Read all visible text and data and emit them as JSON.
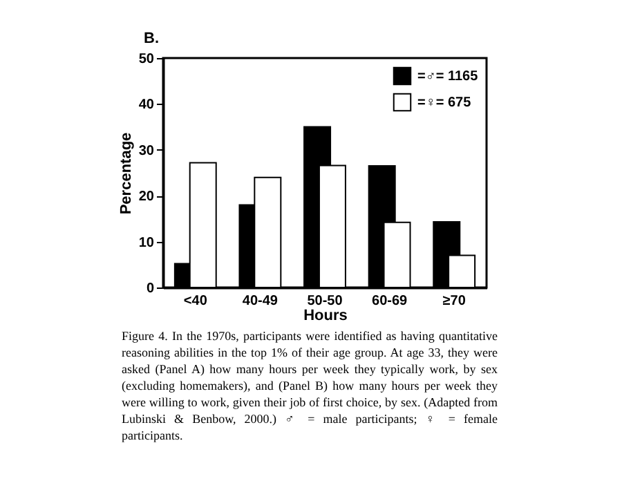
{
  "chart_data": {
    "type": "bar",
    "xlabel": "Hours",
    "ylabel": "Percentage",
    "categories": [
      "<40",
      "40-49",
      "50-50",
      "60-69",
      "≥70"
    ],
    "series": [
      {
        "name": "=♂= 1165",
        "color": "#000000",
        "values": [
          5.2,
          18,
          35,
          26.5,
          14.3
        ]
      },
      {
        "name": "=♀= 675",
        "color": "#ffffff",
        "values": [
          27.2,
          24,
          26.6,
          14.2,
          7
        ]
      }
    ],
    "ylim": [
      0,
      50
    ],
    "yticks": [
      0,
      10,
      20,
      30,
      40,
      50
    ],
    "grid": false,
    "legend": "top right",
    "annotations": [
      "B.",
      "Figure 4.   In the 1970s, participants were identified as having quantitative reasoning abilities in the top 1% of their age group. At age 33, they were asked (Panel A) how many hours per week they typically work, by sex (excluding homemakers), and (Panel B) how many hours per week they were willing to work, given their job of first choice, by sex. (Adapted from Lubinski & Benbow, 2000.) ♂ = male participants; ♀ = female participants."
    ]
  }
}
